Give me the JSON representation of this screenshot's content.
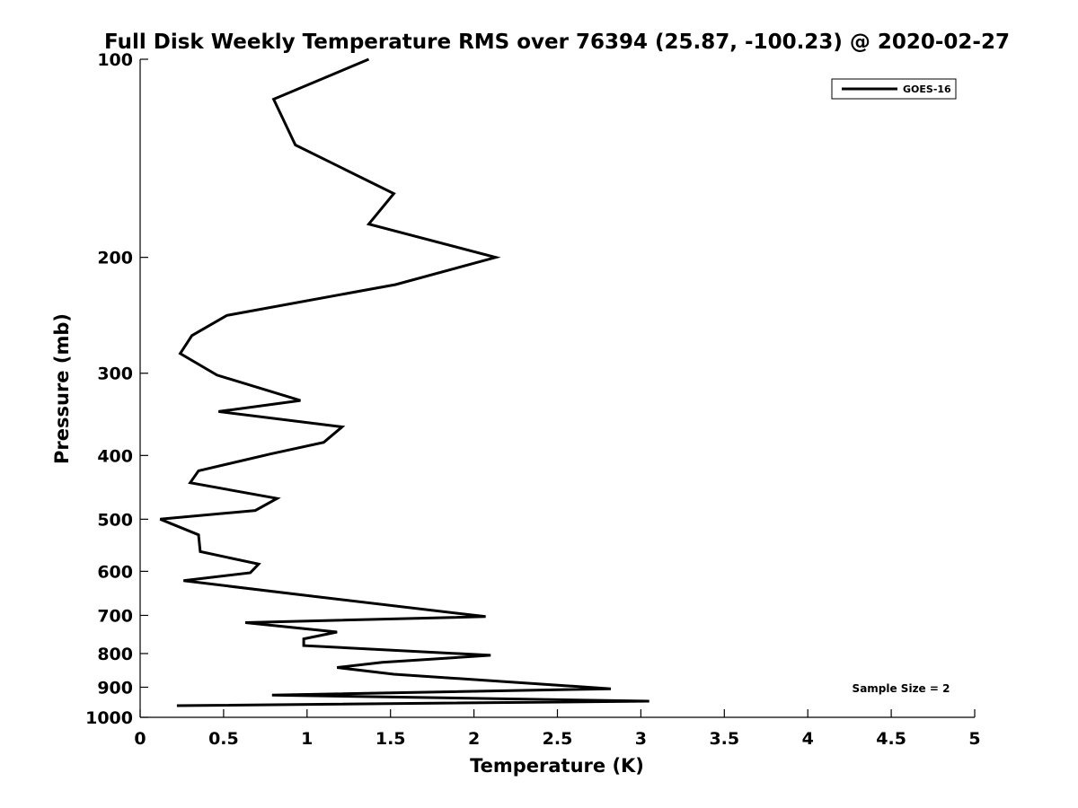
{
  "chart_data": {
    "type": "line",
    "title": "Full Disk Weekly Temperature RMS over 76394 (25.87, -100.23) @ 2020-02-27",
    "xlabel": "Temperature (K)",
    "ylabel": "Pressure (mb)",
    "xlim": [
      0,
      5
    ],
    "ylim": [
      100,
      1000
    ],
    "y_scale": "log",
    "y_reversed": true,
    "x_ticks": [
      "0",
      "0.5",
      "1",
      "1.5",
      "2",
      "2.5",
      "3",
      "3.5",
      "4",
      "4.5",
      "5"
    ],
    "x_tick_values": [
      0,
      0.5,
      1,
      1.5,
      2,
      2.5,
      3,
      3.5,
      4,
      4.5,
      5
    ],
    "y_ticks": [
      "100",
      "200",
      "300",
      "400",
      "500",
      "600",
      "700",
      "800",
      "900",
      "1000"
    ],
    "y_tick_values": [
      100,
      200,
      300,
      400,
      500,
      600,
      700,
      800,
      900,
      1000
    ],
    "grid": false,
    "legend_position": "top-right",
    "series": [
      {
        "name": "GOES-16",
        "color": "#000000",
        "x": [
          1.37,
          0.8,
          0.93,
          1.52,
          1.37,
          2.13,
          1.53,
          0.52,
          0.31,
          0.24,
          0.46,
          0.96,
          0.47,
          1.21,
          1.1,
          0.78,
          0.35,
          0.3,
          0.82,
          0.69,
          0.12,
          0.35,
          0.36,
          0.71,
          0.66,
          0.26,
          1.04,
          2.07,
          0.63,
          1.18,
          0.98,
          0.98,
          2.1,
          1.45,
          1.18,
          1.52,
          2.82,
          0.79,
          3.05,
          0.22
        ],
        "y": [
          100,
          115,
          135,
          160,
          178,
          200,
          220,
          245,
          263,
          280,
          302,
          330,
          343,
          362,
          382,
          398,
          422,
          440,
          465,
          485,
          500,
          528,
          560,
          585,
          603,
          620,
          655,
          703,
          718,
          742,
          760,
          778,
          805,
          825,
          840,
          860,
          905,
          925,
          945,
          960
        ]
      }
    ],
    "annotation": "Sample Size = 2"
  }
}
